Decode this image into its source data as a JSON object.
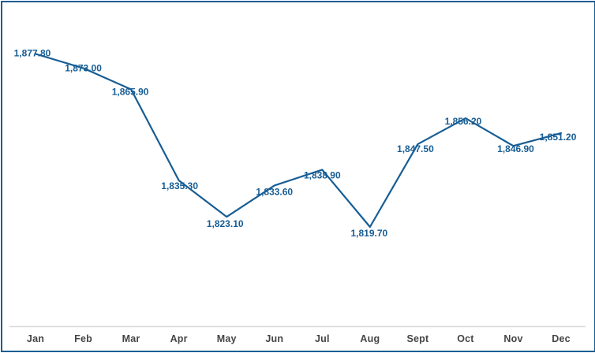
{
  "chart_data": {
    "type": "line",
    "title": "",
    "xlabel": "",
    "ylabel": "",
    "legend_position": "none",
    "grid": false,
    "markers": false,
    "categories": [
      "Jan",
      "Feb",
      "Mar",
      "Apr",
      "May",
      "Jun",
      "Jul",
      "Aug",
      "Sept",
      "Oct",
      "Nov",
      "Dec"
    ],
    "values": [
      1877.8,
      1873.0,
      1865.9,
      1835.3,
      1823.1,
      1833.6,
      1838.9,
      1819.7,
      1847.5,
      1856.2,
      1846.9,
      1851.2
    ],
    "data_labels": [
      "1,877.80",
      "1,873.00",
      "1,865.90",
      "1,835.30",
      "1,823.10",
      "1,833.60",
      "1,838.90",
      "1,819.70",
      "1,847.50",
      "1,856.20",
      "1,846.90",
      "1,851.20"
    ],
    "ylim": [
      1815,
      1882
    ],
    "colors": {
      "line": "#175D94",
      "data_label": "#175D94",
      "axis_tick_label": "#454545",
      "axis_line": "#D9D9D9",
      "frame_border": "#175D94",
      "background": "#FFFFFF"
    }
  }
}
